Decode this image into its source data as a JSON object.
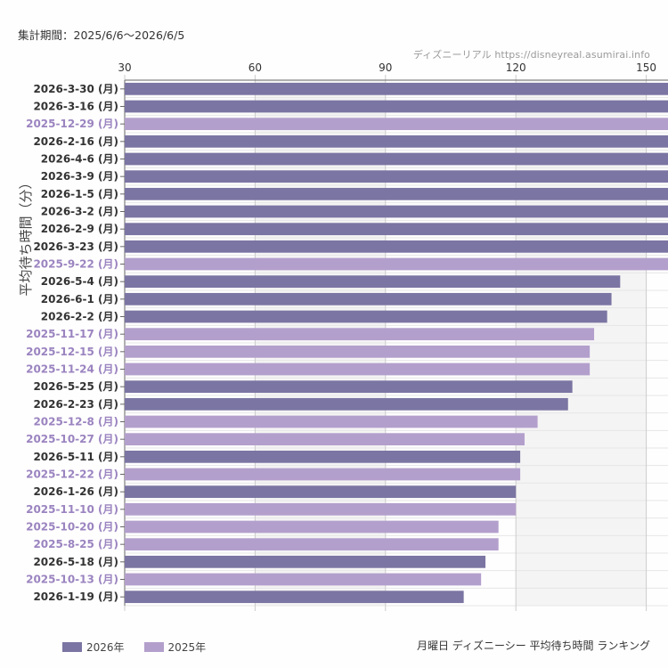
{
  "header": {
    "period": "集計期間：2025/6/6〜2026/6/5",
    "source": "ディズニーリアル  https://disneyreal.asumirai.info"
  },
  "footer": {
    "caption": "月曜日 ディズニーシー 平均待ち時間 ランキング"
  },
  "colors": {
    "2026": "#7b75a3",
    "2025": "#b39fcc",
    "label_2026": "#333333",
    "label_2025": "#9b84c0"
  },
  "chart_data": {
    "type": "bar",
    "orientation": "horizontal",
    "title": "",
    "xlabel": "",
    "ylabel": "平均待ち時間（分）",
    "xlim": [
      30,
      155
    ],
    "xticks": [
      30,
      60,
      90,
      120,
      150
    ],
    "grid": true,
    "legend_position": "bottom-left",
    "legend": [
      {
        "name": "2026年",
        "series": "2026"
      },
      {
        "name": "2025年",
        "series": "2025"
      }
    ],
    "categories": [
      "2026-3-30 (月)",
      "2026-3-16 (月)",
      "2025-12-29 (月)",
      "2026-2-16 (月)",
      "2026-4-6 (月)",
      "2026-3-9 (月)",
      "2026-1-5 (月)",
      "2026-3-2 (月)",
      "2026-2-9 (月)",
      "2026-3-23 (月)",
      "2025-9-22 (月)",
      "2026-5-4 (月)",
      "2026-6-1 (月)",
      "2026-2-2 (月)",
      "2025-11-17 (月)",
      "2025-12-15 (月)",
      "2025-11-24 (月)",
      "2026-5-25 (月)",
      "2026-2-23 (月)",
      "2025-12-8 (月)",
      "2025-10-27 (月)",
      "2026-5-11 (月)",
      "2025-12-22 (月)",
      "2026-1-26 (月)",
      "2025-11-10 (月)",
      "2025-10-20 (月)",
      "2025-8-25 (月)",
      "2026-5-18 (月)",
      "2025-10-13 (月)",
      "2026-1-19 (月)"
    ],
    "values": [
      160,
      160,
      160,
      160,
      160,
      160,
      160,
      160,
      160,
      160,
      160,
      144,
      142,
      141,
      138,
      137,
      137,
      133,
      132,
      125,
      122,
      121,
      121,
      120,
      120,
      116,
      116,
      113,
      112,
      108
    ],
    "year": [
      "2026",
      "2026",
      "2025",
      "2026",
      "2026",
      "2026",
      "2026",
      "2026",
      "2026",
      "2026",
      "2025",
      "2026",
      "2026",
      "2026",
      "2025",
      "2025",
      "2025",
      "2026",
      "2026",
      "2025",
      "2025",
      "2026",
      "2025",
      "2026",
      "2025",
      "2025",
      "2025",
      "2026",
      "2025",
      "2026"
    ]
  }
}
